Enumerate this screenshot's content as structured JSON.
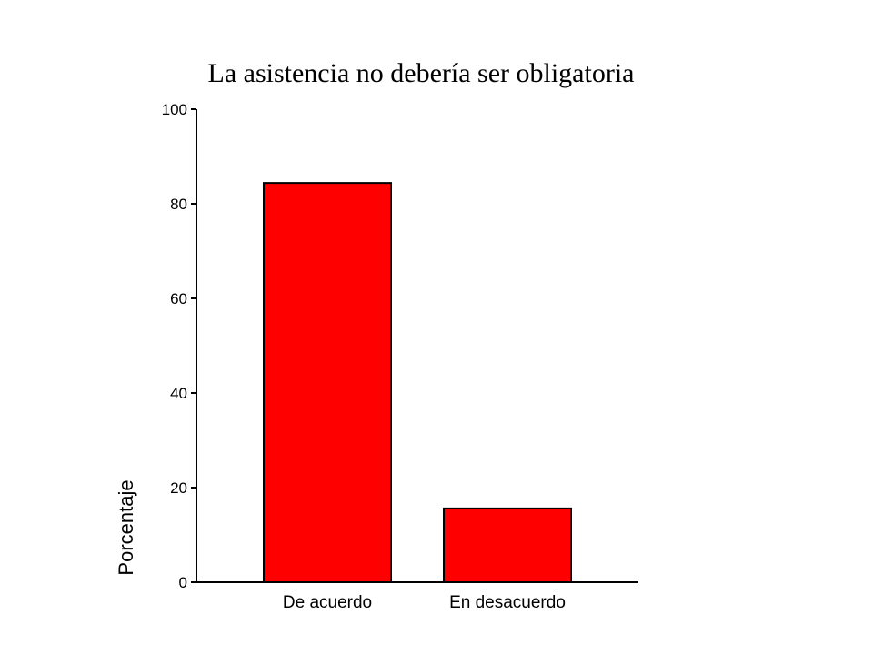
{
  "chart_data": {
    "type": "bar",
    "title": "La asistencia no debería ser obligatoria",
    "xlabel": "",
    "ylabel": "Porcentaje",
    "categories": [
      "De acuerdo",
      "En desacuerdo"
    ],
    "values": [
      84.4,
      15.6
    ],
    "ylim": [
      0,
      100
    ],
    "yticks": [
      0,
      20,
      40,
      60,
      80,
      100
    ],
    "grid": false,
    "legend": "none",
    "bar_color": "#ff0000",
    "bar_edge_color": "#000000"
  }
}
